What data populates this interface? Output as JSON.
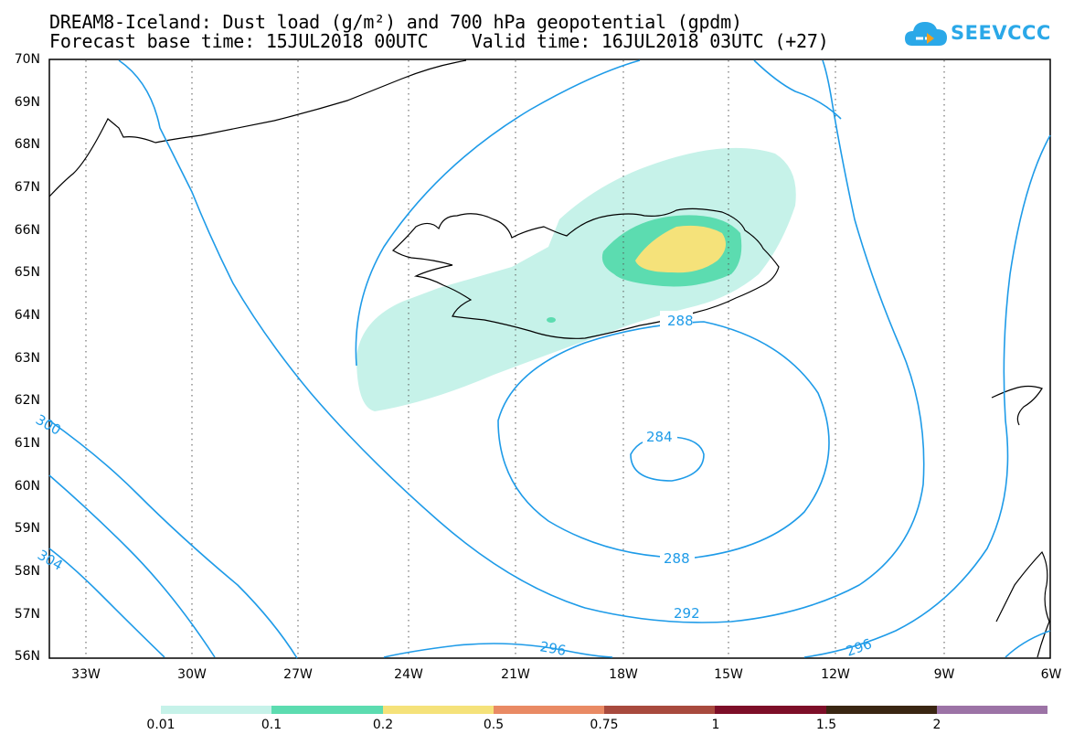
{
  "title": {
    "line1": "DREAM8-Iceland: Dust load (g/m²) and 700 hPa geopotential (gpdm)",
    "line2": "Forecast base time: 15JUL2018 00UTC    Valid time: 16JUL2018 03UTC (+27)"
  },
  "logo": {
    "text": "SEEVCCC",
    "icon": "cloud-icon",
    "color": "#2aa8e8"
  },
  "map": {
    "lat_labels": [
      "70N",
      "69N",
      "68N",
      "67N",
      "66N",
      "65N",
      "64N",
      "63N",
      "62N",
      "61N",
      "60N",
      "59N",
      "58N",
      "57N",
      "56N"
    ],
    "lon_labels": [
      "33W",
      "30W",
      "27W",
      "24W",
      "21W",
      "18W",
      "15W",
      "12W",
      "9W",
      "6W"
    ],
    "contour_labels": [
      "288",
      "284",
      "288",
      "292",
      "296",
      "296",
      "300",
      "304"
    ],
    "contour_color": "#1e9be8",
    "coastline_color": "#000000",
    "dust_colors": {
      "low": "#c6f2e9",
      "mid": "#5cdcb0",
      "high": "#f5e27a"
    }
  },
  "legend": {
    "labels": [
      "0.01",
      "0.1",
      "0.2",
      "0.5",
      "0.75",
      "1",
      "1.5",
      "2"
    ],
    "colors": [
      "#c6f2e9",
      "#5cdcb0",
      "#f5e27a",
      "#e98a64",
      "#a84a3e",
      "#7d0e28",
      "#3a2612",
      "#9c73a6"
    ]
  }
}
